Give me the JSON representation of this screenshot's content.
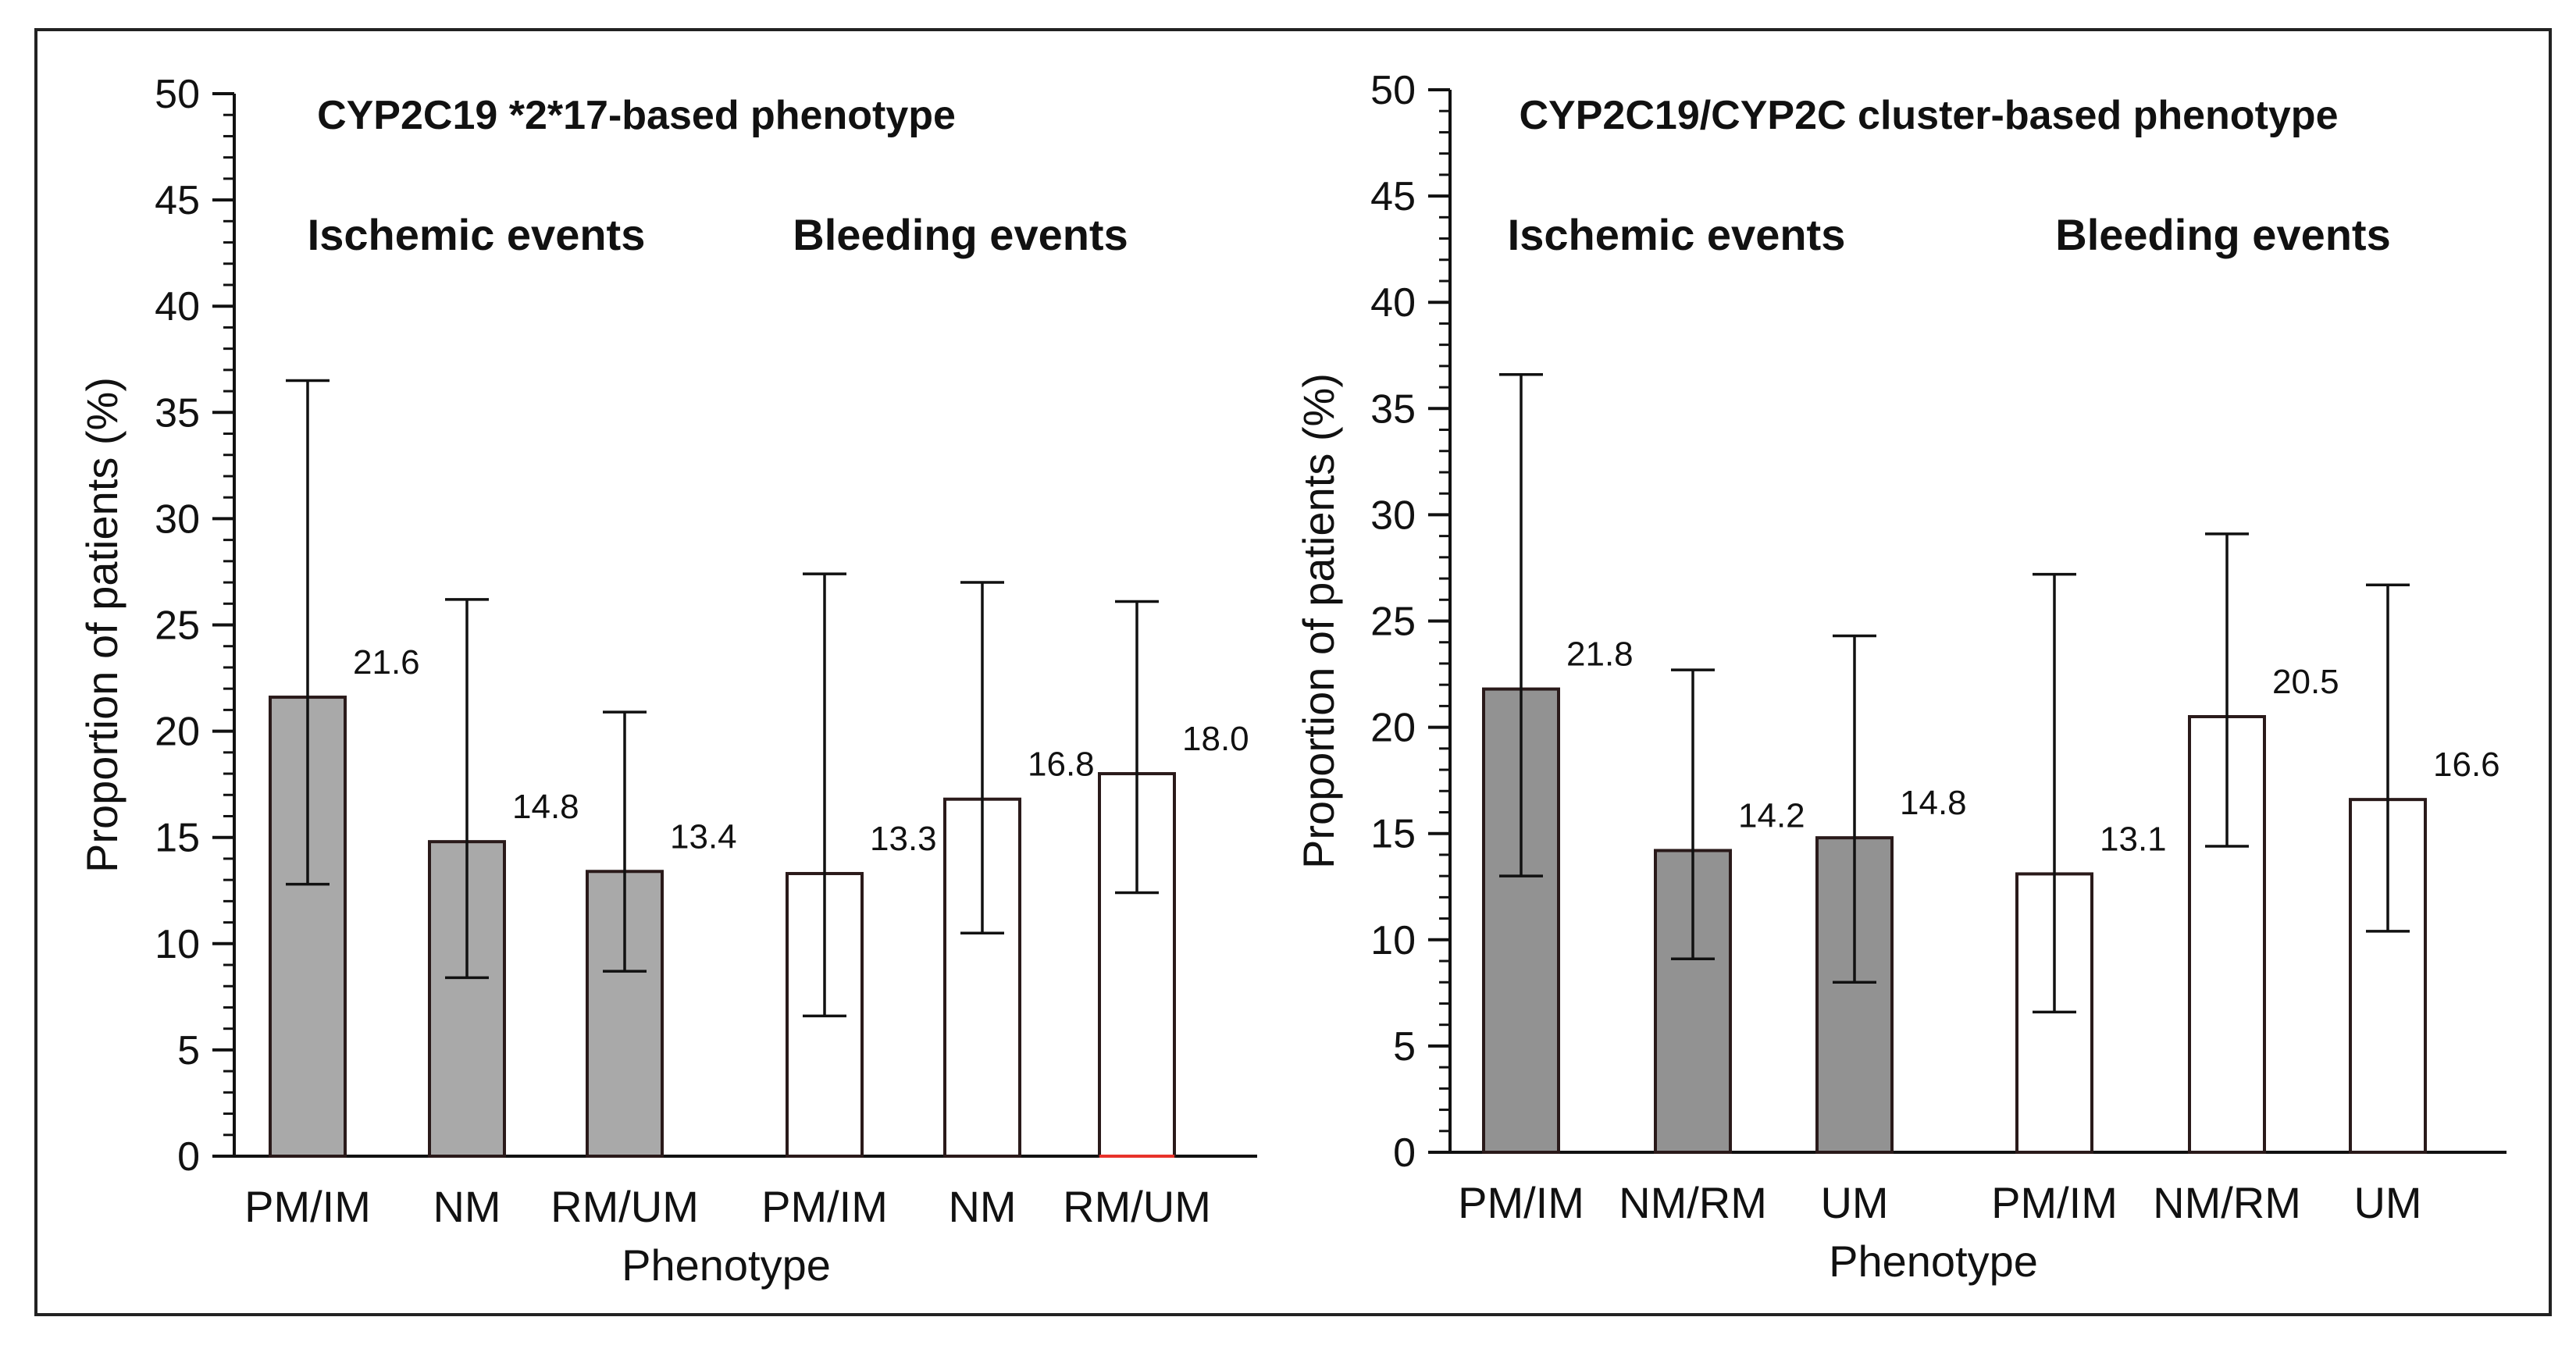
{
  "chart_data": [
    {
      "type": "bar",
      "title": "CYP2C19 *2*17-based phenotype",
      "xlabel": "Phenotype",
      "ylabel": "Proportion of patients (%)",
      "ylim": [
        0,
        50
      ],
      "ytick_step": 5,
      "yticks": [
        "0",
        "5",
        "10",
        "15",
        "20",
        "25",
        "30",
        "35",
        "40",
        "45",
        "50"
      ],
      "groups": [
        {
          "label": "Ischemic events",
          "fill": "#a9a9a9"
        },
        {
          "label": "Bleeding events",
          "fill": "#ffffff"
        }
      ],
      "bars": [
        {
          "category": "PM/IM",
          "group": 0,
          "value": 21.6,
          "err_low": 12.8,
          "err_high": 36.5,
          "label": "21.6"
        },
        {
          "category": "NM",
          "group": 0,
          "value": 14.8,
          "err_low": 8.4,
          "err_high": 26.2,
          "label": "14.8"
        },
        {
          "category": "RM/UM",
          "group": 0,
          "value": 13.4,
          "err_low": 8.7,
          "err_high": 20.9,
          "label": "13.4"
        },
        {
          "category": "PM/IM",
          "group": 1,
          "value": 13.3,
          "err_low": 6.6,
          "err_high": 27.4,
          "label": "13.3"
        },
        {
          "category": "NM",
          "group": 1,
          "value": 16.8,
          "err_low": 10.5,
          "err_high": 27.0,
          "label": "16.8"
        },
        {
          "category": "RM/UM",
          "group": 1,
          "value": 18.0,
          "err_low": 12.4,
          "err_high": 26.1,
          "label": "18.0"
        }
      ]
    },
    {
      "type": "bar",
      "title": "CYP2C19/CYP2C cluster-based phenotype",
      "xlabel": "Phenotype",
      "ylabel": "Proportion of patients (%)",
      "ylim": [
        0,
        50
      ],
      "ytick_step": 5,
      "yticks": [
        "0",
        "5",
        "10",
        "15",
        "20",
        "25",
        "30",
        "35",
        "40",
        "45",
        "50"
      ],
      "groups": [
        {
          "label": "Ischemic events",
          "fill": "#929292"
        },
        {
          "label": "Bleeding events",
          "fill": "#ffffff"
        }
      ],
      "bars": [
        {
          "category": "PM/IM",
          "group": 0,
          "value": 21.8,
          "err_low": 13.0,
          "err_high": 36.6,
          "label": "21.8"
        },
        {
          "category": "NM/RM",
          "group": 0,
          "value": 14.2,
          "err_low": 9.1,
          "err_high": 22.7,
          "label": "14.2"
        },
        {
          "category": "UM",
          "group": 0,
          "value": 14.8,
          "err_low": 8.0,
          "err_high": 24.3,
          "label": "14.8"
        },
        {
          "category": "PM/IM",
          "group": 1,
          "value": 13.1,
          "err_low": 6.6,
          "err_high": 27.2,
          "label": "13.1"
        },
        {
          "category": "NM/RM",
          "group": 1,
          "value": 20.5,
          "err_low": 14.4,
          "err_high": 29.1,
          "label": "20.5"
        },
        {
          "category": "UM",
          "group": 1,
          "value": 16.6,
          "err_low": 10.4,
          "err_high": 26.7,
          "label": "16.6"
        }
      ]
    }
  ],
  "colors": {
    "axis": "#111111",
    "bar_outline": "#2a1a1a",
    "frame": "#222222",
    "baseline_highlight": "#e8322a"
  }
}
